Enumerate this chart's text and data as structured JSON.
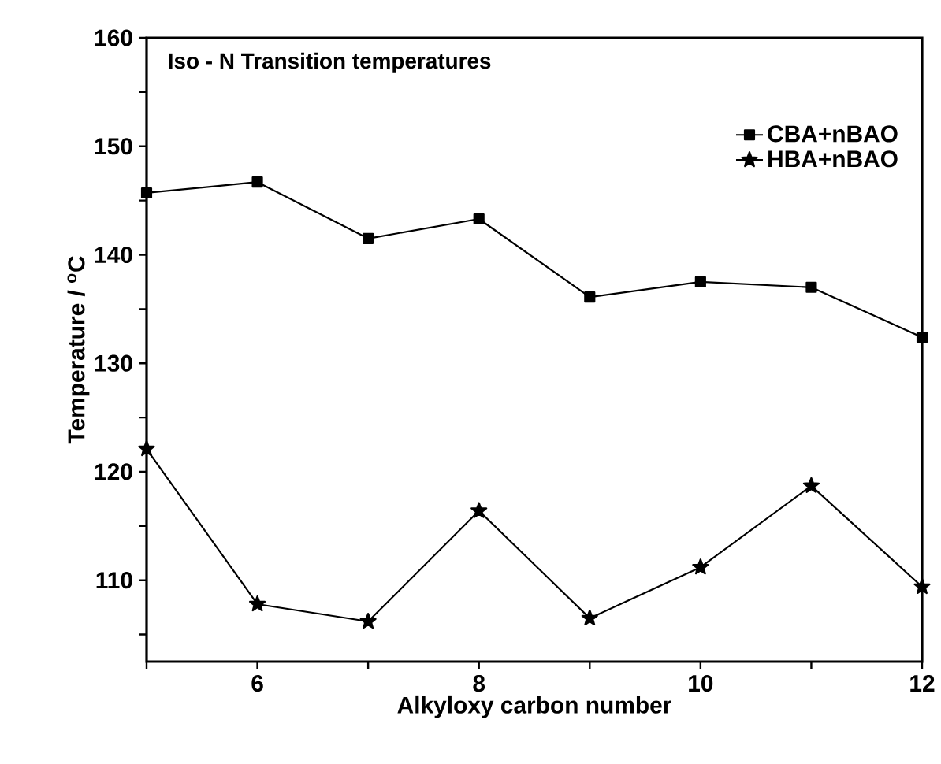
{
  "chart_data": {
    "type": "line",
    "title": "Iso - N Transition temperatures",
    "xlabel": "Alkyloxy carbon number",
    "ylabel": "Temperature / $^{o}$C",
    "x": [
      5,
      6,
      7,
      8,
      9,
      10,
      11,
      12
    ],
    "series": [
      {
        "name": "CBA+nBAO",
        "color": "#000000",
        "marker": "square",
        "values": [
          145.7,
          146.7,
          141.5,
          143.3,
          136.1,
          137.5,
          137.0,
          132.4
        ]
      },
      {
        "name": "HBA+nBAO",
        "color": "#000000",
        "marker": "star",
        "values": [
          122.1,
          107.8,
          106.2,
          116.4,
          106.5,
          111.2,
          118.7,
          109.4
        ]
      }
    ],
    "xlim": [
      5,
      12
    ],
    "ylim": [
      102.5,
      160
    ],
    "xticks": [
      {
        "value": 5,
        "label": null
      },
      6,
      {
        "value": 7,
        "label": null
      },
      8,
      {
        "value": 9,
        "label": null
      },
      10,
      {
        "value": 11,
        "label": null
      },
      12
    ],
    "yticks": [
      {
        "value": 105,
        "label": null
      },
      110,
      {
        "value": 115,
        "label": null
      },
      120,
      {
        "value": 125,
        "label": null
      },
      130,
      {
        "value": 135,
        "label": null
      },
      140,
      {
        "value": 145,
        "label": null
      },
      150,
      {
        "value": 155,
        "label": null
      },
      160
    ],
    "legend": "top right",
    "grid": false,
    "line_style": "solid"
  }
}
